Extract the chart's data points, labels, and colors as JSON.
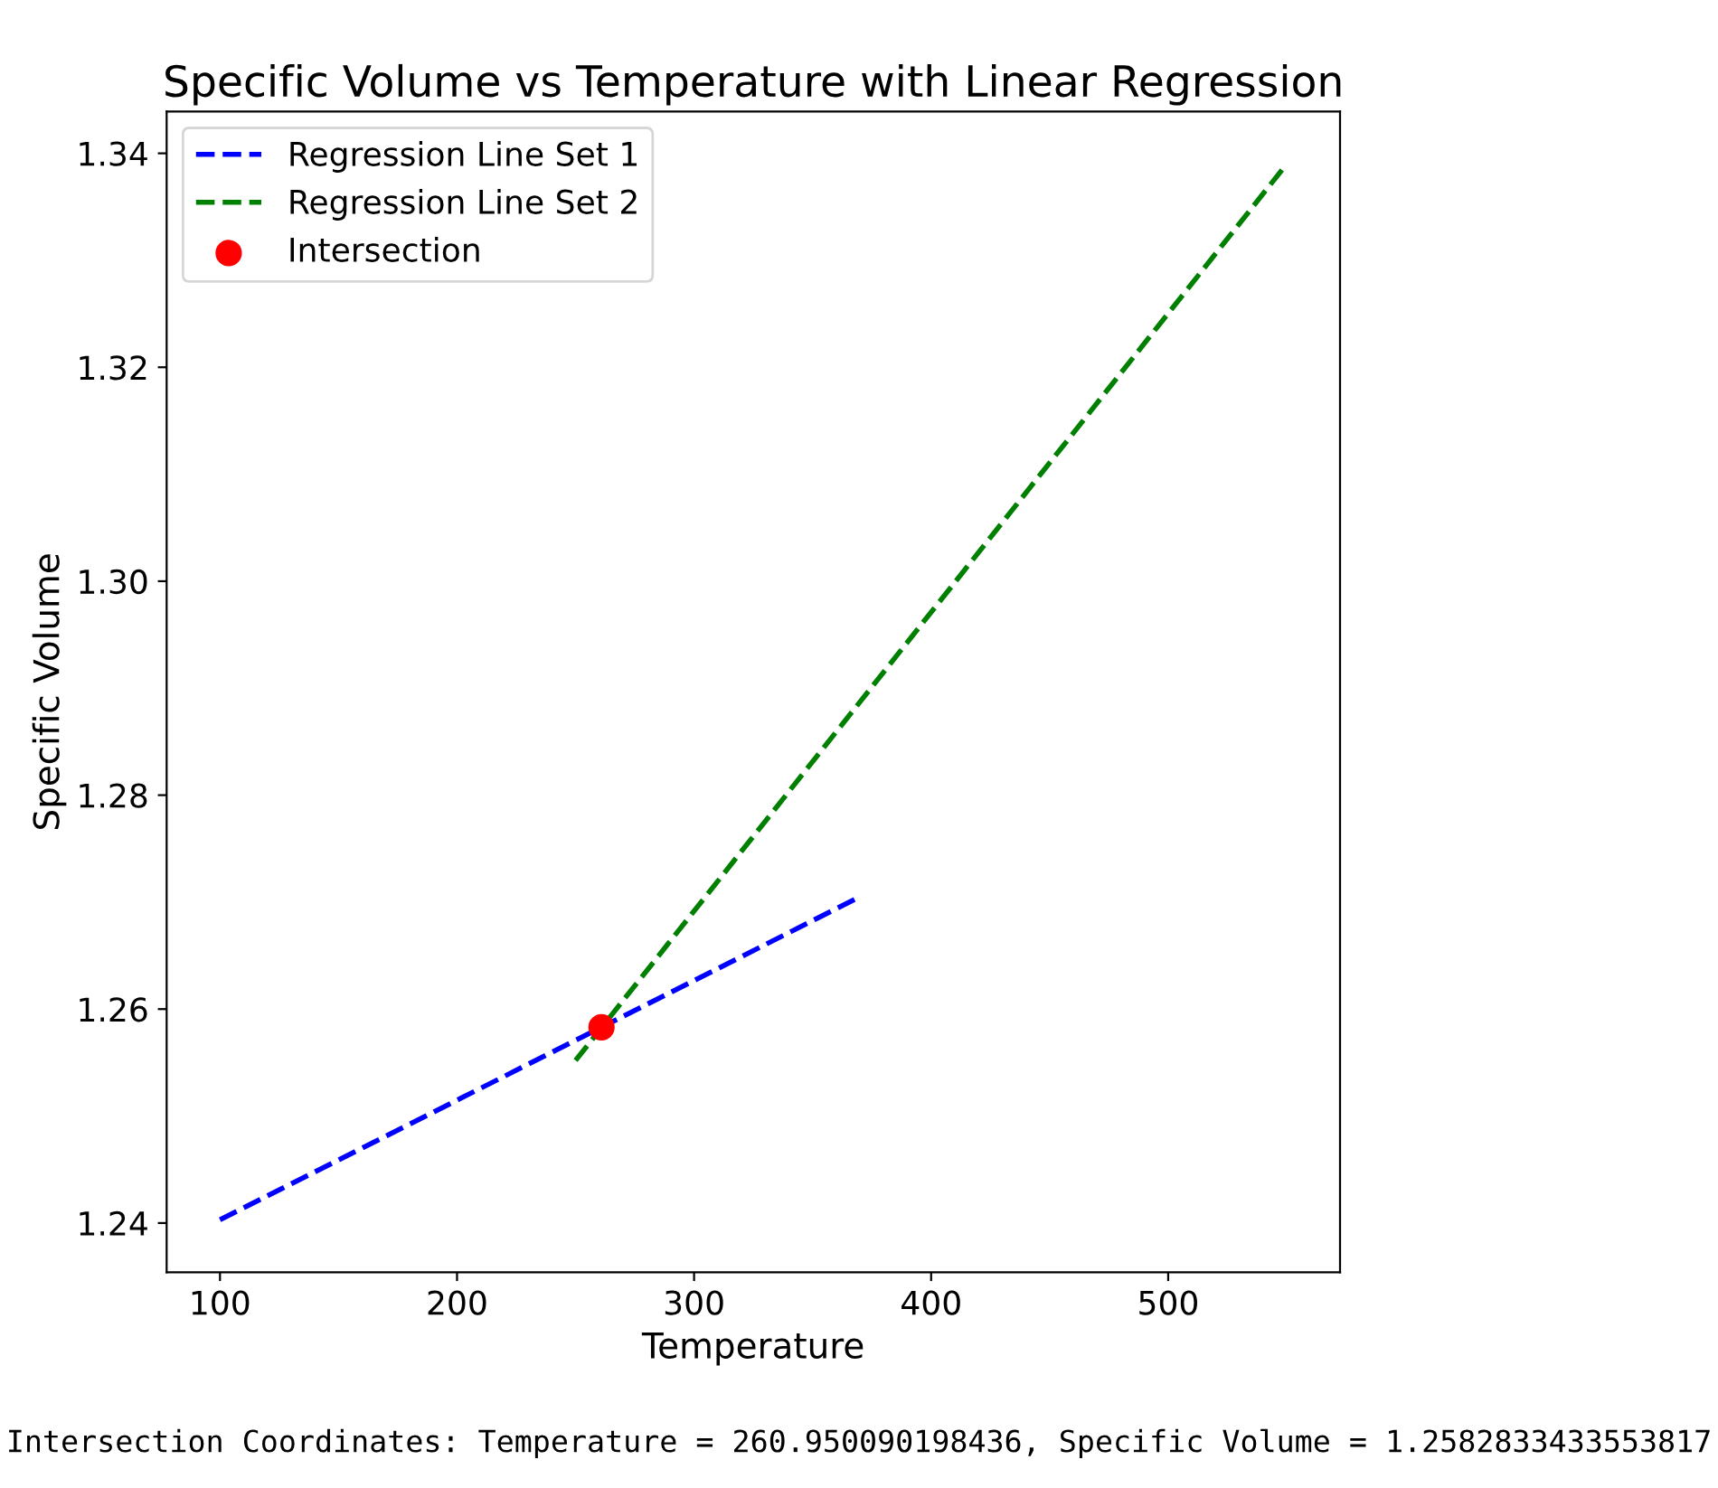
{
  "chart_data": {
    "type": "line",
    "title": "Specific Volume vs Temperature with Linear Regression",
    "xlabel": "Temperature",
    "ylabel": "Specific Volume",
    "series": [
      {
        "name": "Regression Line Set 1",
        "color": "#0000ff",
        "x": [
          100,
          370
        ],
        "values": [
          1.2403,
          1.2705
        ],
        "line_style": "dashed"
      },
      {
        "name": "Regression Line Set 2",
        "color": "#008000",
        "x": [
          250,
          550
        ],
        "values": [
          1.2552,
          1.339
        ],
        "line_style": "dashed"
      },
      {
        "name": "Intersection",
        "type": "scatter",
        "color": "#ff0000",
        "x": [
          260.95
        ],
        "values": [
          1.2583
        ],
        "marker": "circle"
      }
    ],
    "xlim": [
      77.5,
      572.5
    ],
    "ylim": [
      1.2354,
      1.3439
    ],
    "xticks": [
      100,
      200,
      300,
      400,
      500
    ],
    "yticks": [
      1.24,
      1.26,
      1.28,
      {
        "value": 1.3,
        "label": "1.30"
      },
      1.32,
      1.34
    ],
    "legend": "top left",
    "grid": false,
    "annotations": [
      "Intersection Coordinates: Temperature = 260.950090198436, Specific Volume = 1.2582833433553817"
    ]
  }
}
